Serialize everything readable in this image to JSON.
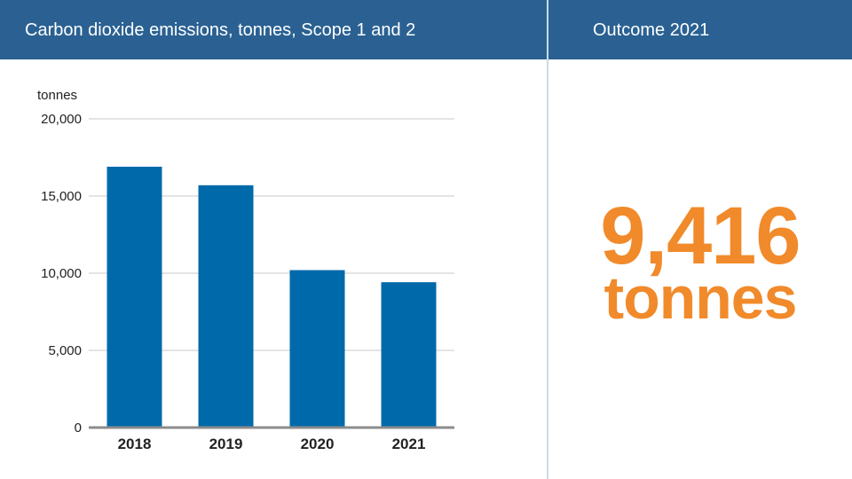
{
  "header": {
    "chart_title": "Carbon dioxide emissions, tonnes, Scope 1 and 2",
    "outcome_title": "Outcome 2021"
  },
  "outcome": {
    "value": "9,416",
    "unit": "tonnes"
  },
  "colors": {
    "header_bg": "#2a6192",
    "bar": "#0069aa",
    "accent": "#f18a2a",
    "gridline": "#c8c8c8",
    "baseline": "#8c8c8c"
  },
  "chart_data": {
    "type": "bar",
    "title": "Carbon dioxide emissions, tonnes, Scope 1 and 2",
    "ylabel": "tonnes",
    "xlabel": "",
    "categories": [
      "2018",
      "2019",
      "2020",
      "2021"
    ],
    "values": [
      16900,
      15700,
      10200,
      9416
    ],
    "ylim": [
      0,
      20000
    ],
    "yticks": [
      0,
      5000,
      10000,
      15000,
      20000
    ],
    "ytick_labels": [
      "0",
      "5,000",
      "10,000",
      "15,000",
      "20,000"
    ],
    "grid": true,
    "legend": "none"
  }
}
